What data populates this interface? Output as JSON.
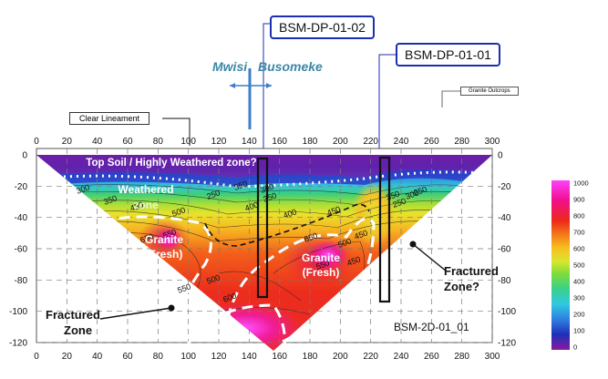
{
  "boreholes": {
    "a": "BSM-DP-01-02",
    "b": "BSM-DP-01-01"
  },
  "places": {
    "left": "Mwisi",
    "right": "Busomeke"
  },
  "labels": {
    "lineament": "Clear Lineament",
    "granite_outcrops": "Granite Outcrops",
    "top_soil": "Top Soil / Highly Weathered zone?",
    "weathered_line1": "Weathered",
    "weathered_line2": "zone",
    "granite_left_1": "Granite",
    "granite_left_2": "(Fresh)",
    "granite_right_1": "Granite",
    "granite_right_2": "(Fresh)",
    "fractured_left_1": "Fractured",
    "fractured_left_2": "Zone",
    "fractured_right_1": "Fractured",
    "fractured_right_2": "Zone?",
    "section_id": "BSM-2D-01_01"
  },
  "axes": {
    "x_ticks": [
      "0",
      "20",
      "40",
      "60",
      "80",
      "100",
      "120",
      "140",
      "160",
      "180",
      "200",
      "220",
      "240",
      "260",
      "280",
      "300"
    ],
    "y_ticks": [
      "0",
      "-20",
      "-40",
      "-60",
      "-80",
      "-100",
      "-120"
    ]
  },
  "contour_labels": [
    "250",
    "300",
    "350",
    "400",
    "450",
    "500",
    "550",
    "300",
    "250",
    "350",
    "400",
    "450",
    "500",
    "550",
    "600",
    "650",
    "450",
    "500",
    "550",
    "650",
    "450",
    "350",
    "350",
    "250",
    "300"
  ],
  "colorbar": {
    "ticks": [
      "1000",
      "900",
      "800",
      "700",
      "600",
      "500",
      "400",
      "300",
      "200",
      "100",
      "0"
    ],
    "colors": [
      "#8a1a9e",
      "#1f2fb8",
      "#2f7fe0",
      "#30c8e0",
      "#3ad08a",
      "#7edc3a",
      "#d8e630",
      "#f6c020",
      "#f47a18",
      "#ee2a18",
      "#f0108a",
      "#ff40ff"
    ]
  }
}
